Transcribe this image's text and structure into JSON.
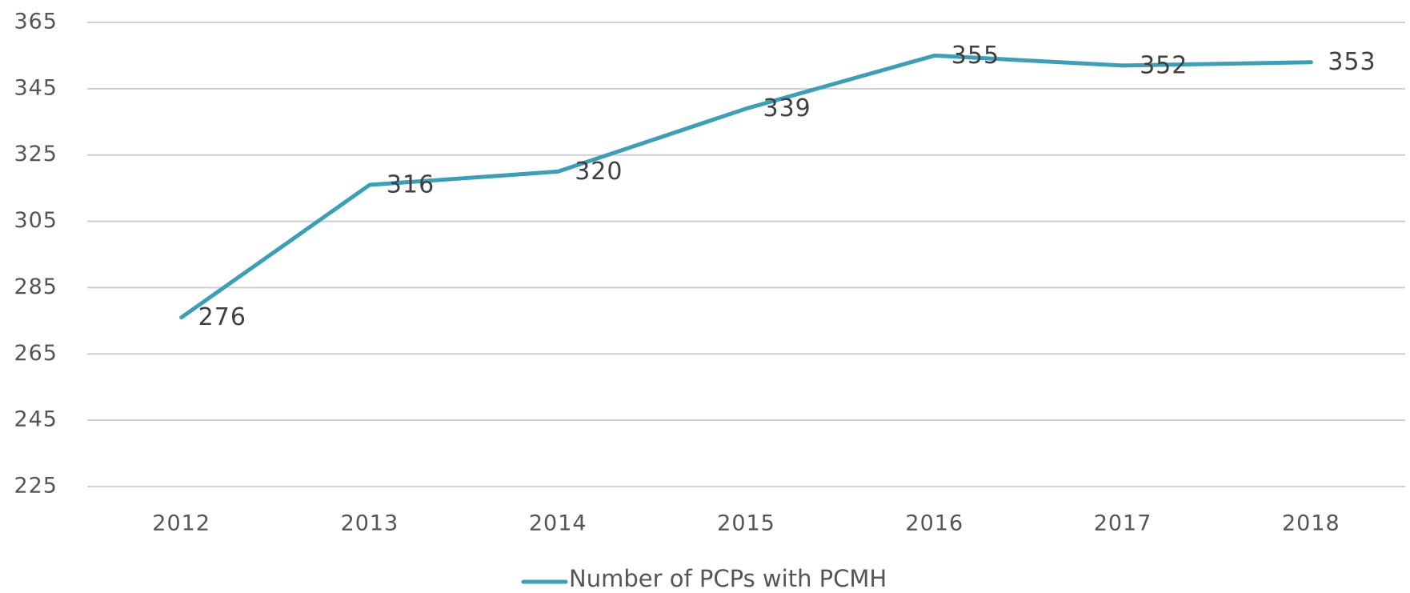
{
  "chart_data": {
    "type": "line",
    "categories": [
      "2012",
      "2013",
      "2014",
      "2015",
      "2016",
      "2017",
      "2018"
    ],
    "series": [
      {
        "name": "Number of PCPs with PCMH",
        "color": "#3a9fb8",
        "values": [
          276,
          316,
          320,
          339,
          355,
          352,
          353
        ]
      }
    ],
    "ylim": [
      225,
      365
    ],
    "yticks": [
      225,
      245,
      265,
      285,
      305,
      325,
      345,
      365
    ],
    "grid": true,
    "legend": "bottom"
  }
}
